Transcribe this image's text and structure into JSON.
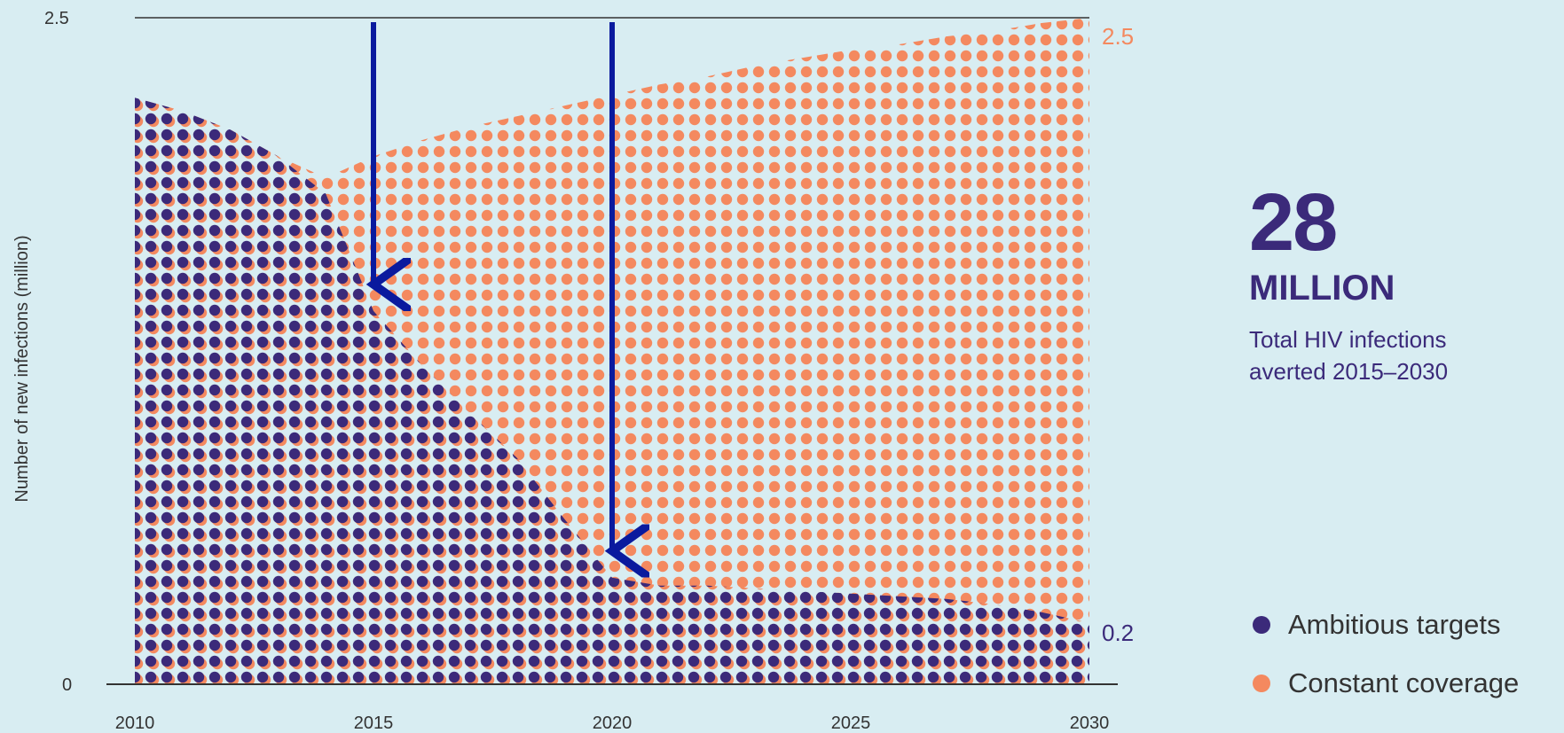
{
  "chart_data": {
    "type": "area",
    "title": "",
    "xlabel": "",
    "ylabel": "Number of new infections (million)",
    "xlim": [
      2010,
      2030
    ],
    "ylim": [
      0,
      2.5
    ],
    "y_ticks": [
      "0",
      "2.5"
    ],
    "x_ticks": [
      "2010",
      "2015",
      "2020",
      "2025",
      "2030"
    ],
    "x": [
      2010,
      2011,
      2012,
      2013,
      2014,
      2015,
      2016,
      2017,
      2018,
      2019,
      2020,
      2021,
      2022,
      2023,
      2024,
      2025,
      2026,
      2027,
      2028,
      2029,
      2030
    ],
    "series": [
      {
        "name": "Ambitious targets",
        "color": "#3b2a7a",
        "values": [
          2.2,
          2.15,
          2.08,
          1.98,
          1.84,
          1.4,
          1.2,
          1.02,
          0.85,
          0.62,
          0.4,
          0.37,
          0.37,
          0.36,
          0.35,
          0.34,
          0.33,
          0.32,
          0.3,
          0.27,
          0.23
        ]
      },
      {
        "name": "Constant coverage",
        "color": "#f4895f",
        "values": [
          2.2,
          2.15,
          2.08,
          1.98,
          1.9,
          1.98,
          2.04,
          2.09,
          2.13,
          2.17,
          2.21,
          2.25,
          2.28,
          2.32,
          2.35,
          2.38,
          2.4,
          2.43,
          2.45,
          2.48,
          2.5
        ]
      }
    ],
    "end_labels": {
      "constant": "2.5",
      "ambitious": "0.2"
    },
    "arrows_at": [
      2015,
      2020
    ],
    "grid": false
  },
  "stat": {
    "number": "28",
    "unit": "MILLION",
    "caption_line1": "Total HIV infections",
    "caption_line2": "averted 2015–2030"
  },
  "legend": {
    "items": [
      {
        "label": "Ambitious targets",
        "color": "#3b2a7a"
      },
      {
        "label": "Constant coverage",
        "color": "#f4895f"
      }
    ]
  },
  "colors": {
    "background": "#d8edf2",
    "arrow": "#0a1a9e",
    "axis": "#333333"
  }
}
